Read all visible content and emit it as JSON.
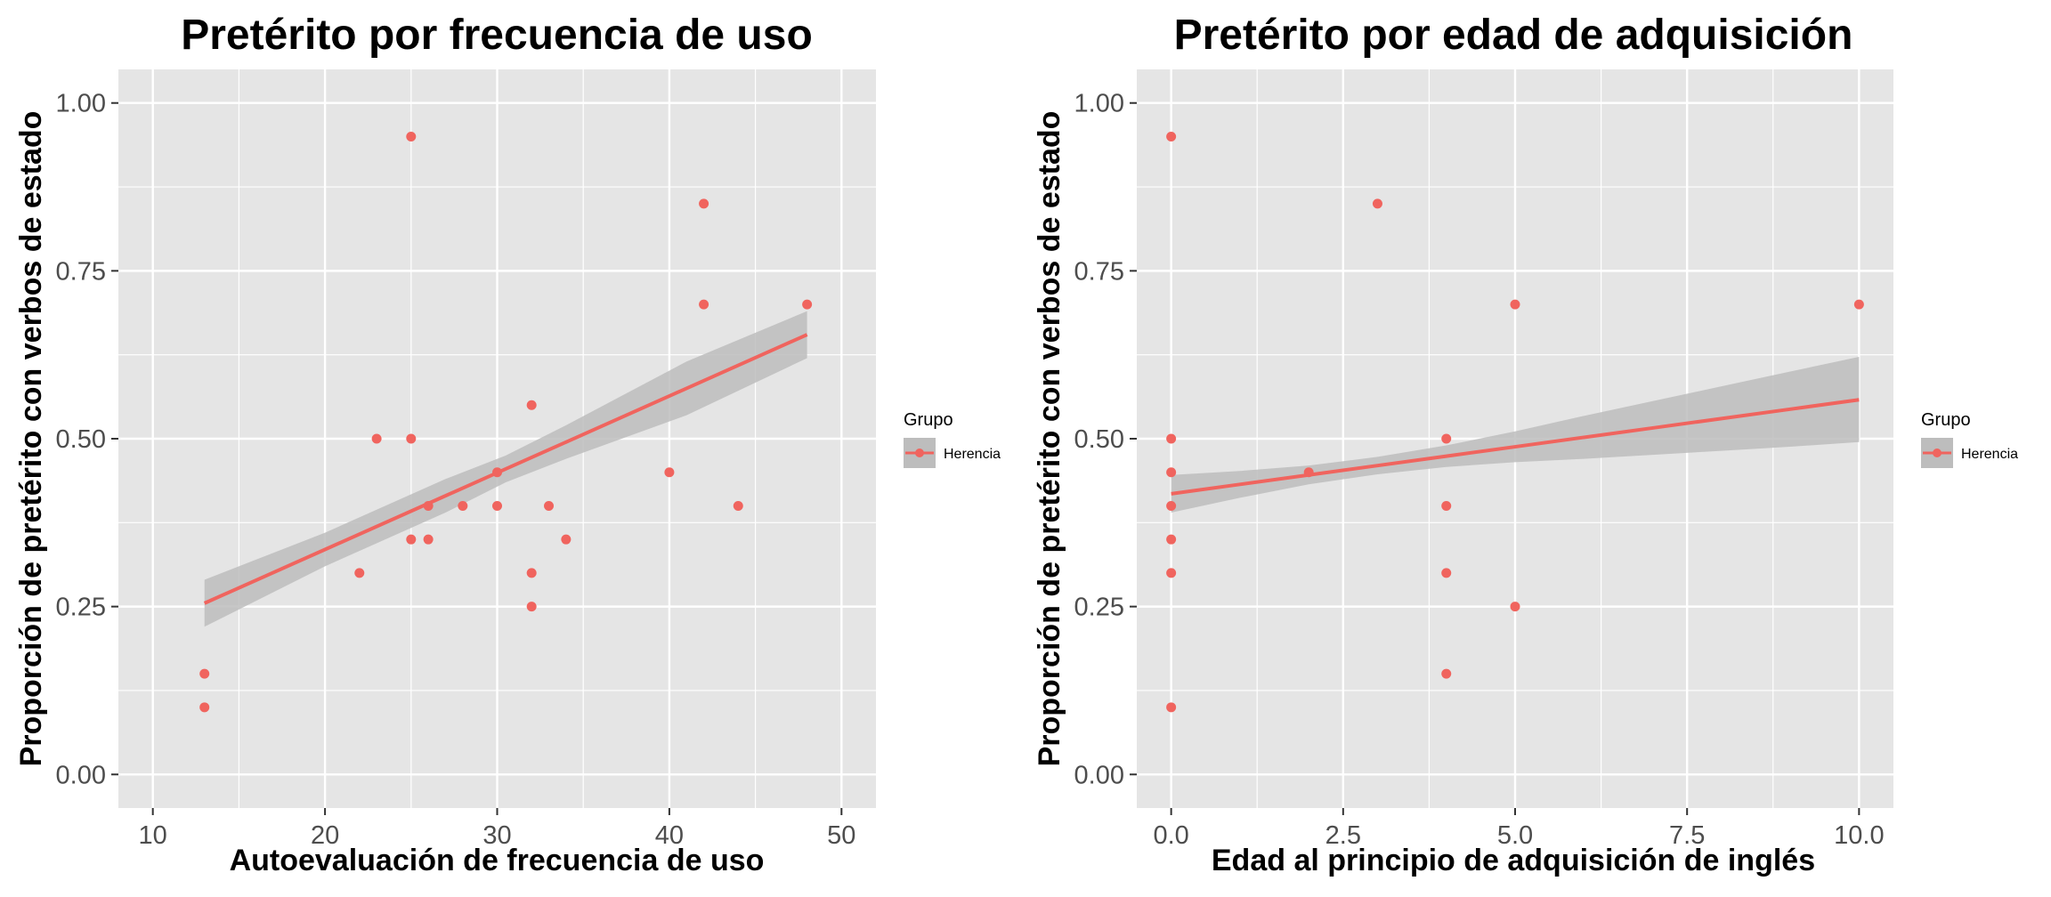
{
  "colors": {
    "panel_bg": "#e5e5e5",
    "grid": "#ffffff",
    "point": "#f0645e",
    "fit_line": "#f0645e",
    "ribbon": "#bdbdbd",
    "tick_text": "#4d4d4d",
    "text": "#000000"
  },
  "chart_data": [
    {
      "type": "scatter",
      "title": "Pretérito por frecuencia de uso",
      "xlabel": "Autoevaluación de frecuencia de uso",
      "ylabel": "Proporción de pretérito con verbos de estado",
      "xlim": [
        8,
        52
      ],
      "ylim": [
        -0.05,
        1.05
      ],
      "x_ticks": [
        10,
        20,
        30,
        40,
        50
      ],
      "x_tick_labels": [
        "10",
        "20",
        "30",
        "40",
        "50"
      ],
      "y_ticks": [
        0,
        0.25,
        0.5,
        0.75,
        1
      ],
      "y_tick_labels": [
        "0.00",
        "0.25",
        "0.50",
        "0.75",
        "1.00"
      ],
      "grid": true,
      "legend": {
        "title": "Grupo",
        "position": "right",
        "entries": [
          "Herencia"
        ]
      },
      "series": [
        {
          "name": "Herencia",
          "points": [
            [
              13,
              0.15
            ],
            [
              13,
              0.1
            ],
            [
              22,
              0.3
            ],
            [
              23,
              0.5
            ],
            [
              25,
              0.95
            ],
            [
              25,
              0.5
            ],
            [
              25,
              0.35
            ],
            [
              26,
              0.4
            ],
            [
              26,
              0.35
            ],
            [
              28,
              0.4
            ],
            [
              30,
              0.45
            ],
            [
              30,
              0.4
            ],
            [
              32,
              0.55
            ],
            [
              32,
              0.3
            ],
            [
              32,
              0.25
            ],
            [
              33,
              0.4
            ],
            [
              34,
              0.35
            ],
            [
              40,
              0.45
            ],
            [
              42,
              0.85
            ],
            [
              42,
              0.7
            ],
            [
              44,
              0.4
            ],
            [
              48,
              0.7
            ]
          ],
          "fit": {
            "x": [
              13,
              20,
              27,
              30.5,
              34,
              41,
              48
            ],
            "y": [
              0.255,
              0.335,
              0.415,
              0.455,
              0.495,
              0.575,
              0.655
            ],
            "lower": [
              0.22,
              0.31,
              0.39,
              0.435,
              0.47,
              0.535,
              0.62
            ],
            "upper": [
              0.29,
              0.36,
              0.44,
              0.475,
              0.52,
              0.615,
              0.69
            ]
          }
        }
      ]
    },
    {
      "type": "scatter",
      "title": "Pretérito por edad de adquisición",
      "xlabel": "Edad al principio de adquisición de inglés",
      "ylabel": "Proporción de pretérito con verbos de estado",
      "xlim": [
        -0.5,
        10.5
      ],
      "ylim": [
        -0.05,
        1.05
      ],
      "x_ticks": [
        0,
        2.5,
        5,
        7.5,
        10
      ],
      "x_tick_labels": [
        "0.0",
        "2.5",
        "5.0",
        "7.5",
        "10.0"
      ],
      "y_ticks": [
        0,
        0.25,
        0.5,
        0.75,
        1
      ],
      "y_tick_labels": [
        "0.00",
        "0.25",
        "0.50",
        "0.75",
        "1.00"
      ],
      "grid": true,
      "legend": {
        "title": "Grupo",
        "position": "right",
        "entries": [
          "Herencia"
        ]
      },
      "series": [
        {
          "name": "Herencia",
          "points": [
            [
              0,
              0.95
            ],
            [
              0,
              0.5
            ],
            [
              0,
              0.45
            ],
            [
              0,
              0.4
            ],
            [
              0,
              0.35
            ],
            [
              0,
              0.3
            ],
            [
              0,
              0.1
            ],
            [
              2,
              0.45
            ],
            [
              3,
              0.85
            ],
            [
              4,
              0.5
            ],
            [
              4,
              0.4
            ],
            [
              4,
              0.3
            ],
            [
              4,
              0.15
            ],
            [
              5,
              0.7
            ],
            [
              5,
              0.25
            ],
            [
              10,
              0.7
            ]
          ],
          "fit": {
            "x": [
              0,
              1,
              2,
              3,
              4,
              5,
              6,
              7,
              8,
              9,
              10
            ],
            "y": [
              0.418,
              0.432,
              0.446,
              0.46,
              0.474,
              0.488,
              0.502,
              0.516,
              0.53,
              0.544,
              0.558
            ],
            "lower": [
              0.39,
              0.412,
              0.432,
              0.447,
              0.458,
              0.465,
              0.47,
              0.476,
              0.482,
              0.488,
              0.495
            ],
            "upper": [
              0.446,
              0.452,
              0.46,
              0.473,
              0.49,
              0.511,
              0.534,
              0.556,
              0.578,
              0.6,
              0.622
            ]
          }
        }
      ]
    }
  ]
}
